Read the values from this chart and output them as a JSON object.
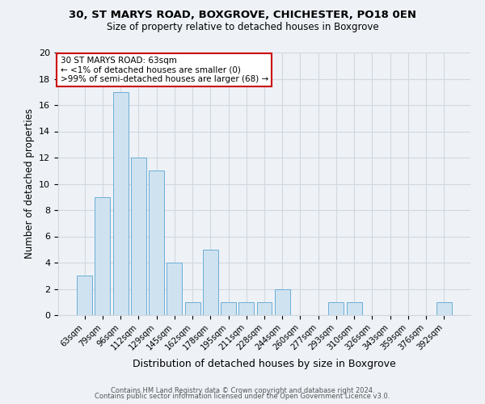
{
  "title1": "30, ST MARYS ROAD, BOXGROVE, CHICHESTER, PO18 0EN",
  "title2": "Size of property relative to detached houses in Boxgrove",
  "xlabel": "Distribution of detached houses by size in Boxgrove",
  "ylabel": "Number of detached properties",
  "bar_color": "#cfe2f0",
  "bar_edge_color": "#6baed6",
  "categories": [
    "63sqm",
    "79sqm",
    "96sqm",
    "112sqm",
    "129sqm",
    "145sqm",
    "162sqm",
    "178sqm",
    "195sqm",
    "211sqm",
    "228sqm",
    "244sqm",
    "260sqm",
    "277sqm",
    "293sqm",
    "310sqm",
    "326sqm",
    "343sqm",
    "359sqm",
    "376sqm",
    "392sqm"
  ],
  "values": [
    3,
    9,
    17,
    12,
    11,
    4,
    1,
    5,
    1,
    1,
    1,
    2,
    0,
    0,
    1,
    1,
    0,
    0,
    0,
    0,
    1
  ],
  "ylim": [
    0,
    20
  ],
  "yticks": [
    0,
    2,
    4,
    6,
    8,
    10,
    12,
    14,
    16,
    18,
    20
  ],
  "annotation_line1": "30 ST MARYS ROAD: 63sqm",
  "annotation_line2": "← <1% of detached houses are smaller (0)",
  "annotation_line3": ">99% of semi-detached houses are larger (68) →",
  "annotation_box_color": "white",
  "annotation_box_edge_color": "#cc0000",
  "footer1": "Contains HM Land Registry data © Crown copyright and database right 2024.",
  "footer2": "Contains public sector information licensed under the Open Government Licence v3.0.",
  "grid_color": "#d0d8e0",
  "background_color": "#eef2f7"
}
